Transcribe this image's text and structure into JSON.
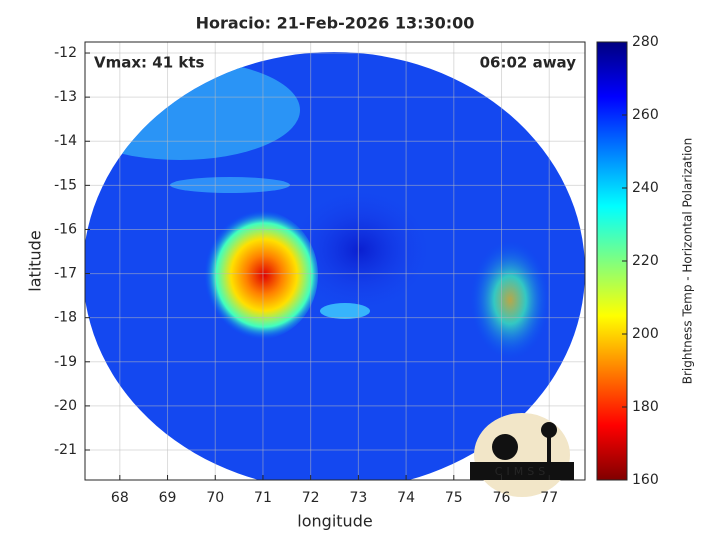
{
  "chart_data": {
    "type": "swath-image",
    "title": "Horacio: 21-Feb-2026 13:30:00",
    "xlabel": "longitude",
    "ylabel": "latitude",
    "xlim": [
      67.27,
      77.75
    ],
    "ylim": [
      -21.68,
      -11.75
    ],
    "xticks": [
      68,
      69,
      70,
      71,
      72,
      73,
      74,
      75,
      76,
      77
    ],
    "yticks": [
      -12,
      -13,
      -14,
      -15,
      -16,
      -17,
      -18,
      -19,
      -20,
      -21
    ],
    "grid": true,
    "annotations": [
      "Vmax: 41 kts",
      "06:02 away"
    ],
    "colorbar": {
      "label": "Brightness Temp - Horizontal Polarization",
      "lim": [
        160,
        280
      ],
      "ticks": [
        160,
        180,
        200,
        220,
        240,
        260,
        280
      ],
      "colormap": "jet"
    },
    "logo": "CIMSS"
  }
}
